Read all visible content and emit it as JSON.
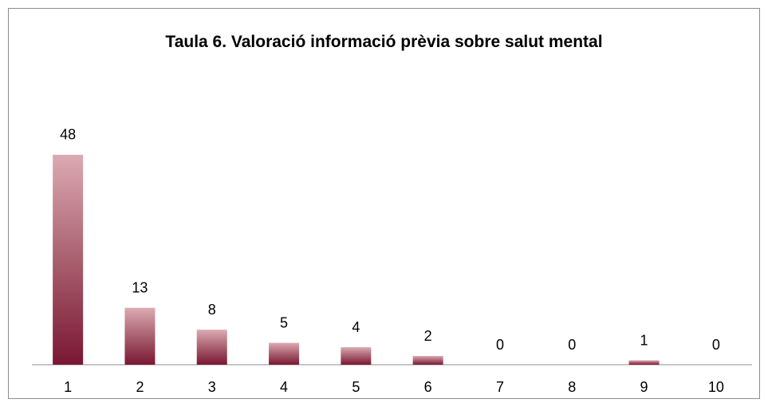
{
  "chart_data": {
    "type": "bar",
    "title": "Taula 6. Valoració informació prèvia sobre salut mental",
    "categories": [
      "1",
      "2",
      "3",
      "4",
      "5",
      "6",
      "7",
      "8",
      "9",
      "10"
    ],
    "values": [
      48,
      13,
      8,
      5,
      4,
      2,
      0,
      0,
      1,
      0
    ],
    "ylim": [
      0,
      50
    ]
  }
}
